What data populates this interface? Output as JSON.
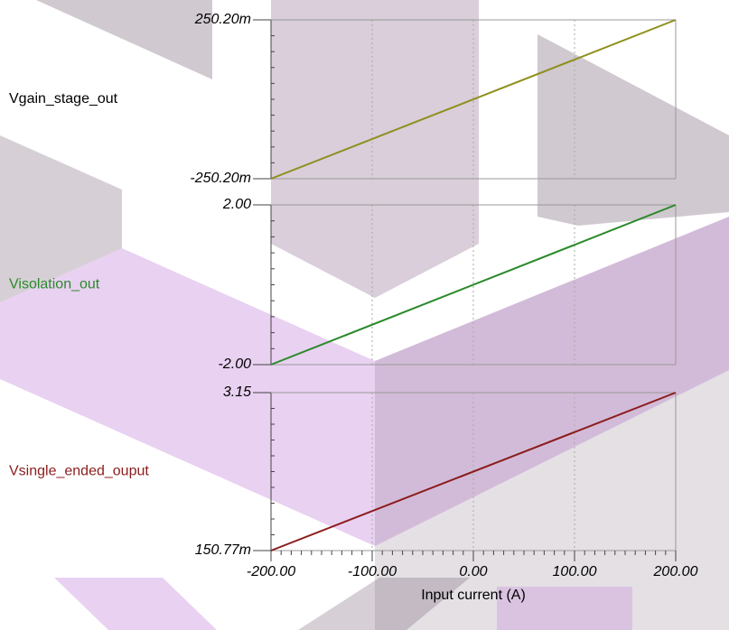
{
  "chart_data": [
    {
      "type": "line",
      "x": [
        -200,
        200
      ],
      "xlim": [
        -200,
        200
      ],
      "series": [
        {
          "name": "Vgain_stage_out",
          "color": "#8f8f1e",
          "label_color": "#000000",
          "values": [
            -0.2502,
            0.2502
          ]
        }
      ],
      "ylim": [
        -0.2502,
        0.2502
      ],
      "yticks": [
        {
          "value": -0.2502,
          "label": "-250.20m"
        },
        {
          "value": 0.2502,
          "label": "250.20m"
        }
      ]
    },
    {
      "type": "line",
      "x": [
        -200,
        200
      ],
      "xlim": [
        -200,
        200
      ],
      "series": [
        {
          "name": "Visolation_out",
          "color": "#2a8a2a",
          "label_color": "#2a8a2a",
          "values": [
            -2,
            2
          ]
        }
      ],
      "ylim": [
        -2,
        2
      ],
      "yticks": [
        {
          "value": -2,
          "label": "-2.00"
        },
        {
          "value": 2,
          "label": "2.00"
        }
      ]
    },
    {
      "type": "line",
      "x": [
        -200,
        200
      ],
      "xlim": [
        -200,
        200
      ],
      "series": [
        {
          "name": "Vsingle_ended_ouput",
          "color": "#8b1c1c",
          "label_color": "#8b1c1c",
          "values": [
            0.15077,
            3.15
          ]
        }
      ],
      "ylim": [
        0.15077,
        3.15
      ],
      "yticks": [
        {
          "value": 0.15077,
          "label": "150.77m"
        },
        {
          "value": 3.15,
          "label": "3.15"
        }
      ],
      "xlabel": "Input current (A)",
      "xticks": [
        {
          "value": -200,
          "label": "-200.00"
        },
        {
          "value": -100,
          "label": "-100.00"
        },
        {
          "value": 0,
          "label": "0.00"
        },
        {
          "value": 100,
          "label": "100.00"
        },
        {
          "value": 200,
          "label": "200.00"
        }
      ]
    }
  ]
}
